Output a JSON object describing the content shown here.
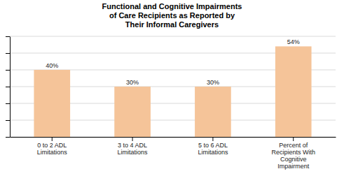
{
  "chart_data": {
    "type": "bar",
    "title": "Functional and Cognitive Impairments\nof Care Recipients as Reported by\nTheir Informal Caregivers",
    "categories": [
      "0 to 2 ADL\nLimitations",
      "3 to 4 ADL\nLimitations",
      "5 to 6 ADL\nLimitations",
      "Percent of\nRecipients With\nCognitive\nImpairment"
    ],
    "values": [
      40,
      30,
      30,
      54
    ],
    "value_labels": [
      "40%",
      "30%",
      "30%",
      "54%"
    ],
    "data_labels": true,
    "color": "#F5C499",
    "ylim": [
      0,
      60
    ],
    "yticks": [
      0,
      10,
      20,
      30,
      40,
      50,
      60
    ],
    "grid": true,
    "tick_labels": "x"
  }
}
